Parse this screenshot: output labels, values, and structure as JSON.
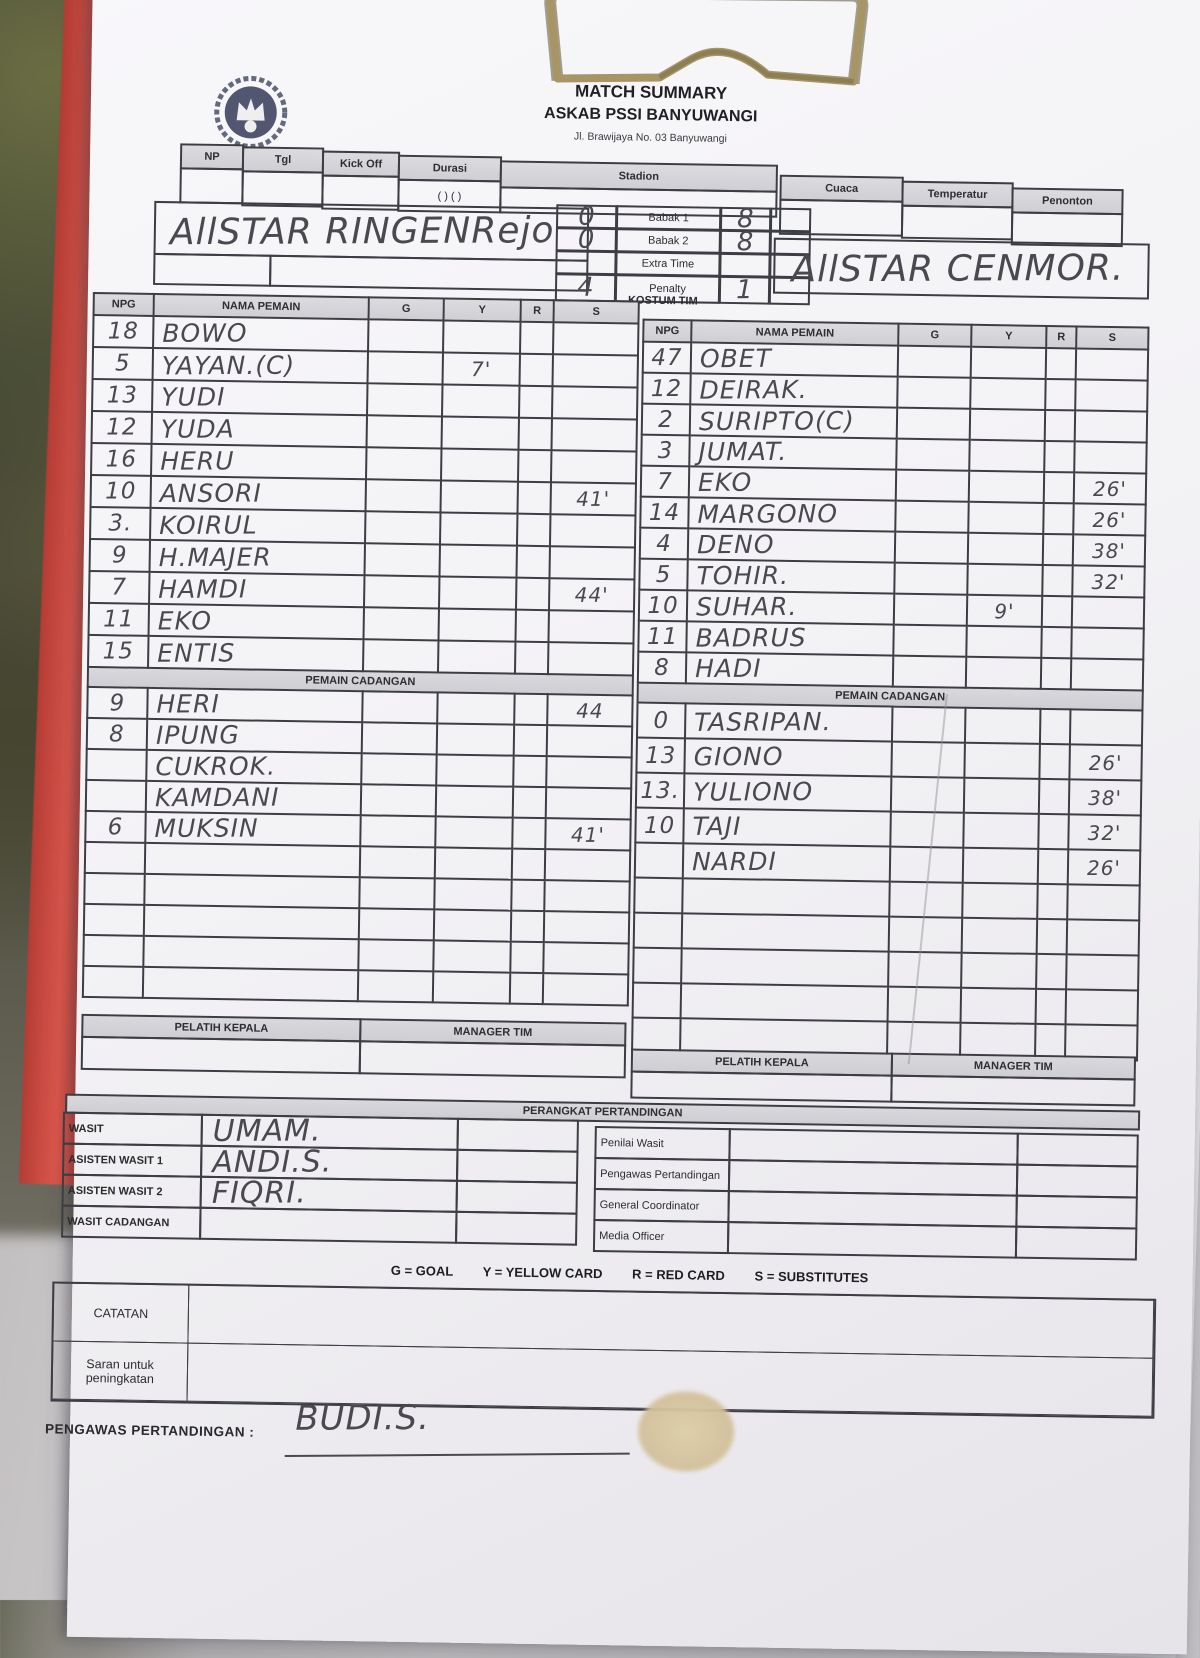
{
  "colors": {
    "paper": "#f3f2f5",
    "folder_red": "#cf4a41",
    "clip_metal": "#9b8c5e",
    "handwriting": "#4a4950",
    "header_fill": "#d8d7db",
    "line": "#3d3e45"
  },
  "header": {
    "title": "MATCH SUMMARY",
    "org": "ASKAB PSSI BANYUWANGI",
    "address": "Jl. Brawijaya No. 03 Banyuwangi"
  },
  "info": {
    "np": "NP",
    "tgl": "Tgl",
    "kick_off": "Kick Off",
    "durasi": "Durasi",
    "durasi_note": "(  ) (  )",
    "stadion": "Stadion",
    "cuaca": "Cuaca",
    "temperatur": "Temperatur",
    "penonton": "Penonton"
  },
  "score": {
    "home_team": "AllSTAR RINGENRejo",
    "away_team": "AllSTAR CENMOR.",
    "kostum_label": "KOSTUM TIM",
    "rows": [
      {
        "label": "Babak 1",
        "home": "0",
        "away": "8"
      },
      {
        "label": "Babak 2",
        "home": "0",
        "away": "8"
      },
      {
        "label": "Extra Time",
        "home": "",
        "away": ""
      },
      {
        "label": "Penalty",
        "home": "4",
        "away": "1"
      }
    ]
  },
  "roster_headers": {
    "npg": "NPG",
    "nama": "NAMA PEMAIN",
    "g": "G",
    "y": "Y",
    "r": "R",
    "s": "S",
    "cadangan": "PEMAIN CADANGAN",
    "pelatih": "PELATIH KEPALA",
    "manager": "MANAGER TIM"
  },
  "home": {
    "players": [
      {
        "npg": "18",
        "nama": "BOWO",
        "g": "",
        "y": "",
        "r": "",
        "s": ""
      },
      {
        "npg": "5",
        "nama": "YAYAN.(C)",
        "g": "",
        "y": "7'",
        "r": "",
        "s": ""
      },
      {
        "npg": "13",
        "nama": "YUDI",
        "g": "",
        "y": "",
        "r": "",
        "s": ""
      },
      {
        "npg": "12",
        "nama": "YUDA",
        "g": "",
        "y": "",
        "r": "",
        "s": ""
      },
      {
        "npg": "16",
        "nama": "HERU",
        "g": "",
        "y": "",
        "r": "",
        "s": ""
      },
      {
        "npg": "10",
        "nama": "ANSORI",
        "g": "",
        "y": "",
        "r": "",
        "s": "41'"
      },
      {
        "npg": "3.",
        "nama": "KOIRUL",
        "g": "",
        "y": "",
        "r": "",
        "s": ""
      },
      {
        "npg": "9",
        "nama": "H.MAJER",
        "g": "",
        "y": "",
        "r": "",
        "s": ""
      },
      {
        "npg": "7",
        "nama": "HAMDI",
        "g": "",
        "y": "",
        "r": "",
        "s": "44'"
      },
      {
        "npg": "11",
        "nama": "EKO",
        "g": "",
        "y": "",
        "r": "",
        "s": ""
      },
      {
        "npg": "15",
        "nama": "ENTIS",
        "g": "",
        "y": "",
        "r": "",
        "s": ""
      }
    ],
    "subs": [
      {
        "npg": "9",
        "nama": "HERI",
        "g": "",
        "y": "",
        "r": "",
        "s": "44"
      },
      {
        "npg": "8",
        "nama": "IPUNG",
        "g": "",
        "y": "",
        "r": "",
        "s": ""
      },
      {
        "npg": "",
        "nama": "CUKROK.",
        "g": "",
        "y": "",
        "r": "",
        "s": ""
      },
      {
        "npg": "",
        "nama": "KAMDANI",
        "g": "",
        "y": "",
        "r": "",
        "s": ""
      },
      {
        "npg": "6",
        "nama": "MUKSIN",
        "g": "",
        "y": "",
        "r": "",
        "s": "41'"
      },
      {
        "npg": "",
        "nama": "",
        "g": "",
        "y": "",
        "r": "",
        "s": ""
      },
      {
        "npg": "",
        "nama": "",
        "g": "",
        "y": "",
        "r": "",
        "s": ""
      },
      {
        "npg": "",
        "nama": "",
        "g": "",
        "y": "",
        "r": "",
        "s": ""
      },
      {
        "npg": "",
        "nama": "",
        "g": "",
        "y": "",
        "r": "",
        "s": ""
      },
      {
        "npg": "",
        "nama": "",
        "g": "",
        "y": "",
        "r": "",
        "s": ""
      }
    ]
  },
  "away": {
    "players": [
      {
        "npg": "47",
        "nama": "OBET",
        "g": "",
        "y": "",
        "r": "",
        "s": ""
      },
      {
        "npg": "12",
        "nama": "DEIRAK.",
        "g": "",
        "y": "",
        "r": "",
        "s": ""
      },
      {
        "npg": "2",
        "nama": "SURIPTO(C)",
        "g": "",
        "y": "",
        "r": "",
        "s": ""
      },
      {
        "npg": "3",
        "nama": "JUMAT.",
        "g": "",
        "y": "",
        "r": "",
        "s": ""
      },
      {
        "npg": "7",
        "nama": "EKO",
        "g": "",
        "y": "",
        "r": "",
        "s": "26'"
      },
      {
        "npg": "14",
        "nama": "MARGONO",
        "g": "",
        "y": "",
        "r": "",
        "s": "26'"
      },
      {
        "npg": "4",
        "nama": "DENO",
        "g": "",
        "y": "",
        "r": "",
        "s": "38'"
      },
      {
        "npg": "5",
        "nama": "TOHIR.",
        "g": "",
        "y": "",
        "r": "",
        "s": "32'"
      },
      {
        "npg": "10",
        "nama": "SUHAR.",
        "g": "",
        "y": "9'",
        "r": "",
        "s": ""
      },
      {
        "npg": "11",
        "nama": "BADRUS",
        "g": "",
        "y": "",
        "r": "",
        "s": ""
      },
      {
        "npg": "8",
        "nama": "HADI",
        "g": "",
        "y": "",
        "r": "",
        "s": ""
      }
    ],
    "subs": [
      {
        "npg": "0",
        "nama": "TASRIPAN.",
        "g": "",
        "y": "",
        "r": "",
        "s": ""
      },
      {
        "npg": "13",
        "nama": "GIONO",
        "g": "",
        "y": "",
        "r": "",
        "s": "26'"
      },
      {
        "npg": "13.",
        "nama": "YULIONO",
        "g": "",
        "y": "",
        "r": "",
        "s": "38'"
      },
      {
        "npg": "10",
        "nama": "TAJI",
        "g": "",
        "y": "",
        "r": "",
        "s": "32'"
      },
      {
        "npg": "",
        "nama": "NARDI",
        "g": "",
        "y": "",
        "r": "",
        "s": "26'"
      },
      {
        "npg": "",
        "nama": "",
        "g": "",
        "y": "",
        "r": "",
        "s": ""
      },
      {
        "npg": "",
        "nama": "",
        "g": "",
        "y": "",
        "r": "",
        "s": ""
      },
      {
        "npg": "",
        "nama": "",
        "g": "",
        "y": "",
        "r": "",
        "s": ""
      },
      {
        "npg": "",
        "nama": "",
        "g": "",
        "y": "",
        "r": "",
        "s": ""
      },
      {
        "npg": "",
        "nama": "",
        "g": "",
        "y": "",
        "r": "",
        "s": ""
      }
    ]
  },
  "officials": {
    "band": "PERANGKAT PERTANDINGAN",
    "left": [
      {
        "label": "WASIT",
        "value": "UMAM."
      },
      {
        "label": "ASISTEN WASIT 1",
        "value": "ANDI.S."
      },
      {
        "label": "ASISTEN WASIT 2",
        "value": "FIQRI."
      },
      {
        "label": "WASIT CADANGAN",
        "value": ""
      }
    ],
    "right": [
      {
        "label": "Penilai Wasit",
        "value": ""
      },
      {
        "label": "Pengawas Pertandingan",
        "value": ""
      },
      {
        "label": "General Coordinator",
        "value": ""
      },
      {
        "label": "Media Officer",
        "value": ""
      }
    ]
  },
  "legend": {
    "g": "G = GOAL",
    "y": "Y = YELLOW CARD",
    "r": "R = RED CARD",
    "s": "S = SUBSTITUTES"
  },
  "notes": {
    "catatan": "CATATAN",
    "saran1": "Saran untuk",
    "saran2": "peningkatan"
  },
  "footer": {
    "label": "PENGAWAS PERTANDINGAN :",
    "value": "BUDI.S."
  }
}
